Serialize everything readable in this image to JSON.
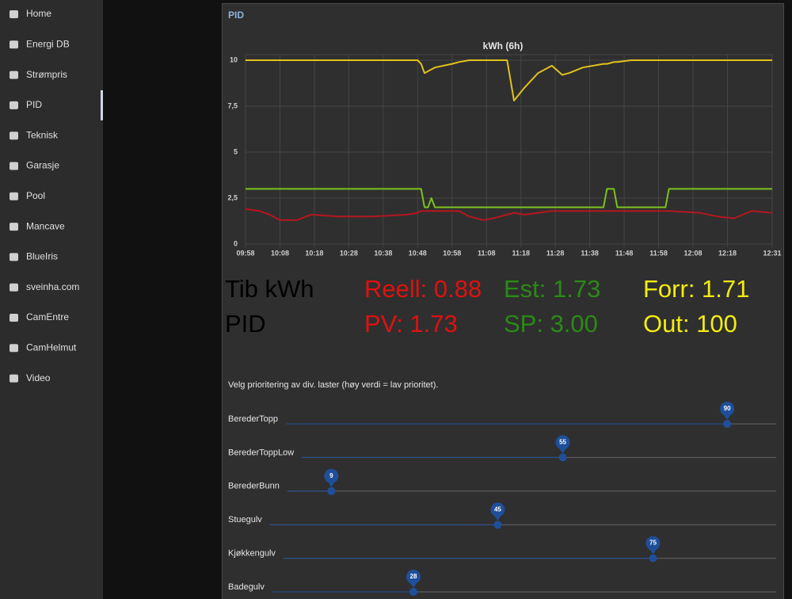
{
  "sidebar": {
    "items": [
      "Home",
      "Energi DB",
      "Strømpris",
      "PID",
      "Teknisk",
      "Garasje",
      "Pool",
      "Mancave",
      "BlueIris",
      "sveinha.com",
      "CamEntre",
      "CamHelmut",
      "Video"
    ],
    "active_index": 3
  },
  "panel": {
    "title": "PID"
  },
  "chart_data": {
    "type": "line",
    "title": "kWh (6h)",
    "x": [
      "09:58",
      "10:02",
      "10:05",
      "10:08",
      "10:13",
      "10:17",
      "10:25",
      "10:35",
      "10:45",
      "10:48",
      "10:49",
      "10:50",
      "10:51",
      "10:52",
      "10:53",
      "10:58",
      "11:00",
      "11:03",
      "11:05",
      "11:07",
      "11:10",
      "11:14",
      "11:16",
      "11:19",
      "11:23",
      "11:27",
      "11:30",
      "11:32",
      "11:36",
      "11:42",
      "11:43",
      "11:45",
      "11:46",
      "11:50",
      "12:00",
      "12:01",
      "12:10",
      "12:15",
      "12:20",
      "12:25",
      "12:31"
    ],
    "series": [
      {
        "color": "#e2c21c",
        "values": [
          10,
          10,
          10,
          10,
          10,
          10,
          10,
          10,
          10,
          10,
          9.8,
          9.3,
          9.4,
          9.5,
          9.6,
          9.8,
          9.9,
          10,
          10,
          10,
          10,
          10,
          7.8,
          8.5,
          9.3,
          9.7,
          9.2,
          9.3,
          9.6,
          9.8,
          9.8,
          9.9,
          9.9,
          10,
          10,
          10,
          10,
          10,
          10,
          10,
          10
        ]
      },
      {
        "color": "#7cc21c",
        "values": [
          3,
          3,
          3,
          3,
          3,
          3,
          3,
          3,
          3,
          3,
          3,
          2,
          2,
          2.5,
          2,
          2,
          2,
          2,
          2,
          2,
          2,
          2,
          2,
          2,
          2,
          2,
          2,
          2,
          2,
          2,
          3,
          3,
          2,
          2,
          2,
          3,
          3,
          3,
          3,
          3,
          3
        ]
      },
      {
        "color": "#b5161e",
        "values": [
          1.9,
          1.8,
          1.6,
          1.3,
          1.3,
          1.6,
          1.5,
          1.5,
          1.6,
          1.7,
          1.8,
          1.8,
          1.8,
          1.8,
          1.8,
          1.8,
          1.8,
          1.5,
          1.4,
          1.3,
          1.4,
          1.6,
          1.7,
          1.6,
          1.7,
          1.8,
          1.8,
          1.8,
          1.8,
          1.8,
          1.8,
          1.8,
          1.8,
          1.8,
          1.8,
          1.8,
          1.7,
          1.5,
          1.4,
          1.8,
          1.7
        ]
      }
    ],
    "xlim": [
      "09:58",
      "12:31"
    ],
    "xticks": [
      "09:58",
      "10:08",
      "10:18",
      "10:28",
      "10:38",
      "10:48",
      "10:58",
      "11:08",
      "11:18",
      "11:28",
      "11:38",
      "11:48",
      "11:58",
      "12:08",
      "12:18",
      "12:31"
    ],
    "ylim": [
      0,
      10.3
    ],
    "yticks": [
      0,
      {
        "value": 2.5,
        "label": "2,5"
      },
      5,
      {
        "value": 7.5,
        "label": "7,5"
      },
      10
    ],
    "grid": true
  },
  "readouts": {
    "rows": [
      [
        "Tib kWh",
        "Reell: 0.88",
        "Est: 1.73",
        "Forr: 1.71"
      ],
      [
        "PID",
        "PV: 1.73",
        "SP: 3.00",
        "Out: 100"
      ]
    ],
    "colors": [
      "#000000",
      "#e01010",
      "#2a8a16",
      "#f2ec10"
    ]
  },
  "sliders": {
    "instructions": "Velg prioritering av div. laster (høy verdi = lav prioritet).",
    "min": 0,
    "max": 100,
    "color": "#1f4f9a",
    "items": [
      {
        "label": "BerederTopp",
        "value": 90
      },
      {
        "label": "BerederToppLow",
        "value": 55
      },
      {
        "label": "BerederBunn",
        "value": 9
      },
      {
        "label": "Stuegulv",
        "value": 45
      },
      {
        "label": "Kjøkkengulv",
        "value": 75
      },
      {
        "label": "Badegulv",
        "value": 28
      }
    ]
  }
}
